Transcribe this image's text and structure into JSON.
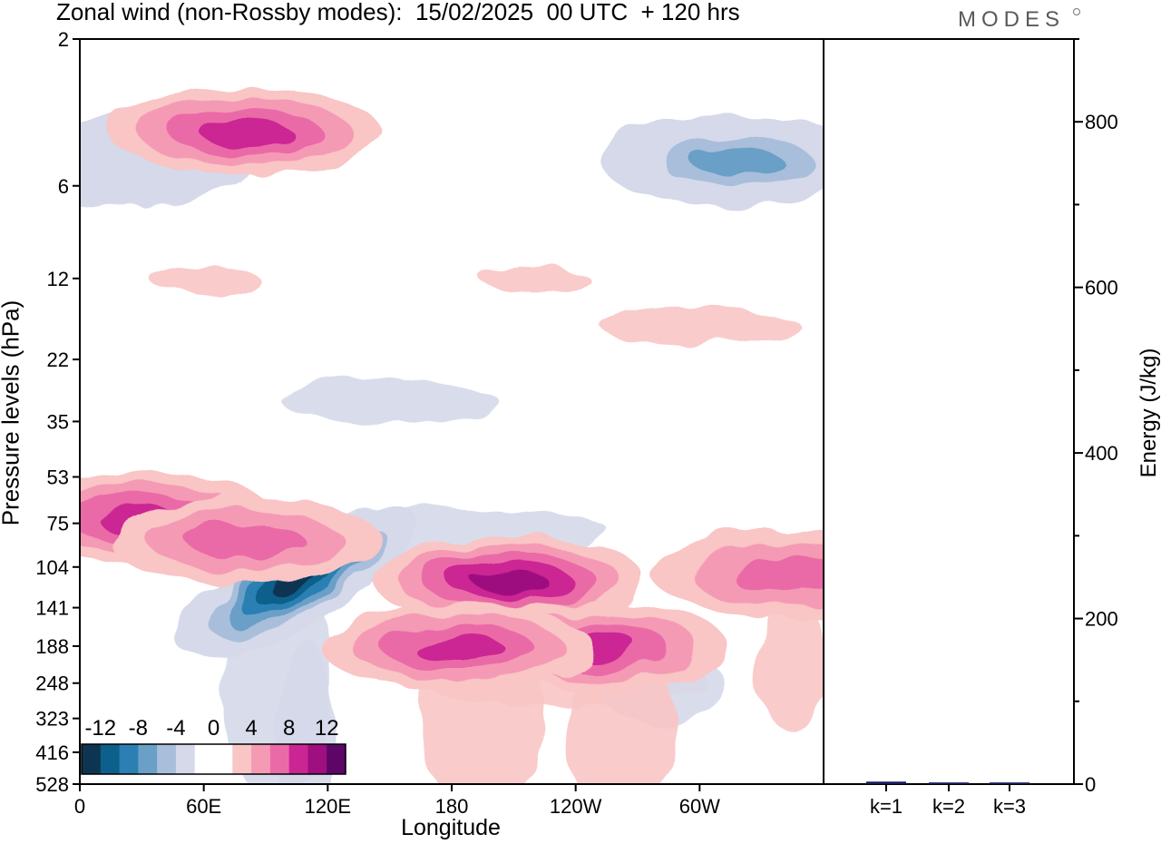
{
  "chart_data": [
    {
      "type": "heatmap",
      "title": "Zonal wind (non-Rossby modes):  15/02/2025  00 UTC  + 120 hrs",
      "xlabel": "Longitude",
      "ylabel": "Pressure levels (hPa)",
      "x_ticks": [
        "0",
        "60E",
        "120E",
        "180",
        "120W",
        "60W"
      ],
      "y_ticks": [
        "2",
        "6",
        "12",
        "22",
        "35",
        "53",
        "75",
        "104",
        "141",
        "188",
        "248",
        "323",
        "416",
        "528"
      ],
      "y_scale": "log",
      "colorbar": {
        "labels": [
          "-12",
          "-8",
          "-4",
          "0",
          "4",
          "8",
          "12"
        ],
        "colors": [
          "#0d3552",
          "#0d5f8c",
          "#2c7fb3",
          "#6a9fc7",
          "#a8bedb",
          "#d5d9e9",
          "#ffffff",
          "#ffffff",
          "#f9c5c5",
          "#f59ab4",
          "#ea6aa7",
          "#cb2593",
          "#9e0f7f",
          "#5c0668"
        ],
        "placement": "bottom-left"
      },
      "features": [
        {
          "lon_center": 105,
          "hpa_center": 115,
          "value": -14
        },
        {
          "lon_center": 20,
          "hpa_center": 5,
          "value": -4
        },
        {
          "lon_center": 318,
          "hpa_center": 5,
          "value": -8
        },
        {
          "lon_center": 80,
          "hpa_center": 4,
          "value": 8
        },
        {
          "lon_center": 208,
          "hpa_center": 115,
          "value": 10
        },
        {
          "lon_center": 248,
          "hpa_center": 188,
          "value": 8
        },
        {
          "lon_center": 183,
          "hpa_center": 190,
          "value": 8
        },
        {
          "lon_center": 30,
          "hpa_center": 72,
          "value": 8
        },
        {
          "lon_center": 80,
          "hpa_center": 85,
          "value": 6
        },
        {
          "lon_center": 343,
          "hpa_center": 110,
          "value": 6
        }
      ]
    },
    {
      "type": "bar",
      "ylabel": "Energy (J/kg)",
      "categories": [
        "k=1",
        "k=2",
        "k=3"
      ],
      "values": [
        3,
        2,
        2
      ],
      "ylim": [
        0,
        900
      ],
      "y_ticks": [
        "0",
        "200",
        "400",
        "600",
        "800"
      ],
      "bar_color": "#1a1a5e"
    }
  ],
  "brand": "MODES"
}
